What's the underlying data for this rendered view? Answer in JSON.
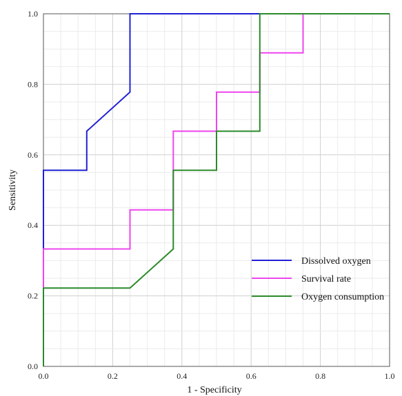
{
  "chart_data": {
    "type": "line",
    "xlabel": "1 - Specificity",
    "ylabel": "Sensitivity",
    "xlim": [
      0,
      1
    ],
    "ylim": [
      0,
      1
    ],
    "x_ticks": [
      "0.0",
      "0.2",
      "0.4",
      "0.6",
      "0.8",
      "1.0"
    ],
    "y_ticks": [
      "0.0",
      "0.2",
      "0.4",
      "0.6",
      "0.8",
      "1.0"
    ],
    "grid": true,
    "legend_position": "bottom-right",
    "series": [
      {
        "name": "Dissolved oxygen",
        "color": "#1f1fd6",
        "points": [
          [
            0,
            0
          ],
          [
            0,
            0.556
          ],
          [
            0.125,
            0.556
          ],
          [
            0.125,
            0.667
          ],
          [
            0.25,
            0.778
          ],
          [
            0.25,
            1.0
          ],
          [
            1.0,
            1.0
          ]
        ]
      },
      {
        "name": "Survival rate",
        "color": "#ee44ee",
        "points": [
          [
            0,
            0
          ],
          [
            0,
            0.333
          ],
          [
            0.25,
            0.333
          ],
          [
            0.25,
            0.444
          ],
          [
            0.375,
            0.444
          ],
          [
            0.375,
            0.667
          ],
          [
            0.5,
            0.667
          ],
          [
            0.5,
            0.778
          ],
          [
            0.625,
            0.778
          ],
          [
            0.625,
            0.889
          ],
          [
            0.75,
            0.889
          ],
          [
            0.75,
            1.0
          ],
          [
            1.0,
            1.0
          ]
        ]
      },
      {
        "name": "Oxygen consumption",
        "color": "#2a8a2a",
        "points": [
          [
            0,
            0
          ],
          [
            0,
            0.222
          ],
          [
            0.25,
            0.222
          ],
          [
            0.375,
            0.333
          ],
          [
            0.375,
            0.556
          ],
          [
            0.5,
            0.556
          ],
          [
            0.5,
            0.667
          ],
          [
            0.625,
            0.667
          ],
          [
            0.625,
            1.0
          ],
          [
            1.0,
            1.0
          ]
        ]
      }
    ]
  }
}
